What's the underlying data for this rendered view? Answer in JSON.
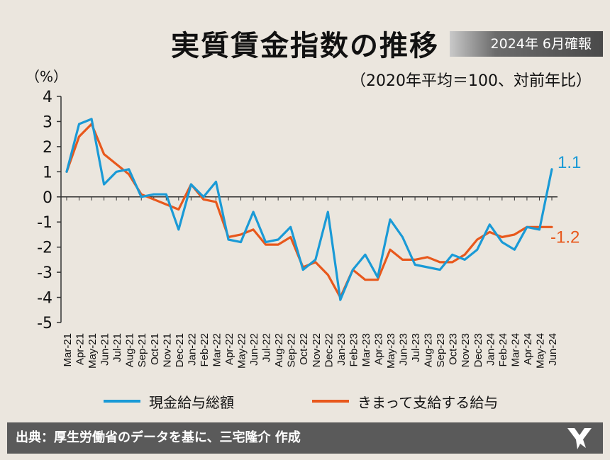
{
  "header": {
    "title": "実質賃金指数の推移",
    "badge": "2024年 6月確報",
    "unit": "（%）",
    "subtitle": "（2020年平均＝100、対前年比）"
  },
  "legend": {
    "series1": "現金給与総額",
    "series2": "きまって支給する給与"
  },
  "footer": {
    "source": "出典：厚生労働省のデータを基に、三宅隆介 作成",
    "logo_icon": "author-logo-icon"
  },
  "colors": {
    "background": "#ebe6de",
    "series1": "#1a9ad6",
    "series2": "#e8581c",
    "axis": "#333333",
    "footer": "#5a5a5a"
  },
  "chart_data": {
    "type": "line",
    "x": [
      "Mar-21",
      "Apr-21",
      "May-21",
      "Jun-21",
      "Jul-21",
      "Aug-21",
      "Sep-21",
      "Oct-21",
      "Nov-21",
      "Dec-21",
      "Jan-22",
      "Feb-22",
      "Mar-22",
      "Apr-22",
      "May-22",
      "Jun-22",
      "Jul-22",
      "Aug-22",
      "Sep-22",
      "Oct-22",
      "Nov-22",
      "Dec-22",
      "Jan-23",
      "Feb-23",
      "Mar-23",
      "Apr-23",
      "May-23",
      "Jun-23",
      "Jul-23",
      "Aug-23",
      "Sep-23",
      "Oct-23",
      "Nov-23",
      "Dec-23",
      "Jan-24",
      "Feb-24",
      "Mar-24",
      "Apr-24",
      "May-24",
      "Jun-24"
    ],
    "series": [
      {
        "name": "現金給与総額",
        "color": "#1a9ad6",
        "values": [
          1.0,
          2.9,
          3.1,
          0.5,
          1.0,
          1.1,
          0.0,
          0.1,
          0.1,
          -1.3,
          0.5,
          0.0,
          0.6,
          -1.7,
          -1.8,
          -0.6,
          -1.8,
          -1.7,
          -1.2,
          -2.9,
          -2.5,
          -0.6,
          -4.1,
          -2.9,
          -2.3,
          -3.2,
          -0.9,
          -1.6,
          -2.7,
          -2.8,
          -2.9,
          -2.3,
          -2.5,
          -2.1,
          -1.1,
          -1.8,
          -2.1,
          -1.2,
          -1.3,
          1.1
        ]
      },
      {
        "name": "きまって支給する給与",
        "color": "#e8581c",
        "values": [
          1.0,
          2.4,
          2.9,
          1.7,
          1.3,
          0.9,
          0.1,
          -0.1,
          -0.3,
          -0.5,
          0.5,
          -0.1,
          -0.2,
          -1.6,
          -1.5,
          -1.3,
          -1.9,
          -1.9,
          -1.6,
          -2.8,
          -2.6,
          -3.1,
          -4.0,
          -2.9,
          -3.3,
          -3.3,
          -2.1,
          -2.5,
          -2.5,
          -2.4,
          -2.6,
          -2.6,
          -2.3,
          -1.7,
          -1.4,
          -1.6,
          -1.5,
          -1.2,
          -1.2,
          -1.2
        ]
      }
    ],
    "end_labels": [
      "1.1",
      "-1.2"
    ],
    "y_ticks": [
      "4",
      "3",
      "2",
      "1",
      "0",
      "-1",
      "-2",
      "-3",
      "-4",
      "-5"
    ],
    "ylim": [
      -5,
      4
    ],
    "grid": false,
    "legend_position": "bottom"
  }
}
